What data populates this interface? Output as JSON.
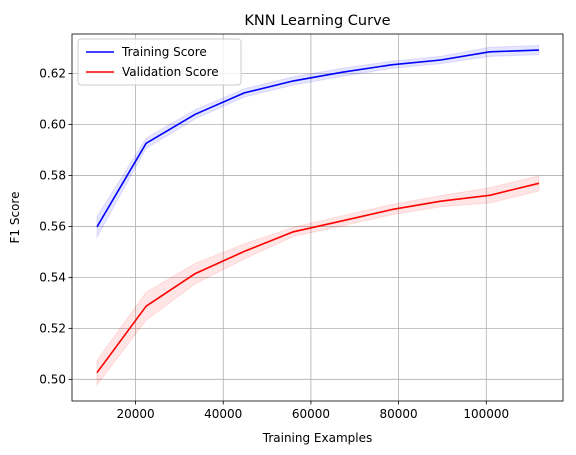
{
  "chart_data": {
    "type": "line",
    "title": "KNN Learning Curve",
    "xlabel": "Training Examples",
    "ylabel": "F1 Score",
    "xlim": [
      5500,
      117500
    ],
    "ylim": [
      0.4915,
      0.6355
    ],
    "xticks": [
      20000,
      40000,
      60000,
      80000,
      100000
    ],
    "xtick_labels": [
      "20000",
      "40000",
      "60000",
      "80000",
      "100000"
    ],
    "yticks": [
      0.5,
      0.52,
      0.54,
      0.56,
      0.58,
      0.6,
      0.62
    ],
    "ytick_labels": [
      "0.50",
      "0.52",
      "0.54",
      "0.56",
      "0.58",
      "0.60",
      "0.62"
    ],
    "grid": true,
    "legend_position": "upper-left",
    "x": [
      11200,
      22400,
      33600,
      44800,
      56000,
      67200,
      78400,
      89600,
      100800,
      112000
    ],
    "series": [
      {
        "name": "Training Score",
        "color": "#0000ff",
        "values": [
          0.5598,
          0.5926,
          0.604,
          0.6124,
          0.6171,
          0.6205,
          0.6234,
          0.6253,
          0.6285,
          0.6292
        ],
        "band": [
          0.004,
          0.002,
          0.0018,
          0.0016,
          0.0016,
          0.0016,
          0.0014,
          0.0014,
          0.0018,
          0.0018
        ]
      },
      {
        "name": "Validation Score",
        "color": "#ff0000",
        "values": [
          0.5026,
          0.5287,
          0.5415,
          0.5502,
          0.5579,
          0.5622,
          0.5666,
          0.5699,
          0.5722,
          0.5769
        ],
        "band": [
          0.0048,
          0.0055,
          0.004,
          0.003,
          0.0018,
          0.002,
          0.002,
          0.0022,
          0.003,
          0.003
        ]
      }
    ]
  }
}
